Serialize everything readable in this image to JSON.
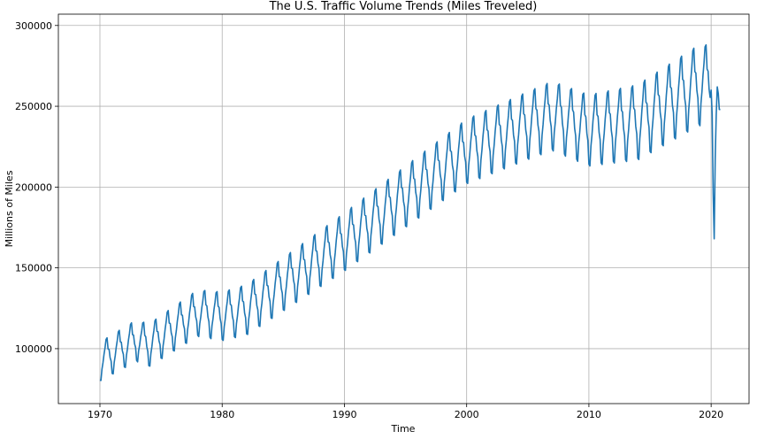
{
  "chart_data": {
    "type": "line",
    "title": "The U.S. Traffic Volume Trends (Miles Treveled)",
    "xlabel": "Time",
    "ylabel": "Millions of Miles",
    "xlim": [
      1966.6,
      2023.1
    ],
    "ylim": [
      66000,
      307000
    ],
    "xticks": [
      1970,
      1980,
      1990,
      2000,
      2010,
      2020
    ],
    "yticks": [
      100000,
      150000,
      200000,
      250000,
      300000
    ],
    "grid": true,
    "line_color": "#1f77b4",
    "series": [
      {
        "name": "",
        "trend_anchors": [
          [
            1970,
            92000
          ],
          [
            1973,
            105000
          ],
          [
            1974,
            102000
          ],
          [
            1978,
            122000
          ],
          [
            1980,
            120000
          ],
          [
            1982,
            124000
          ],
          [
            1990,
            166000
          ],
          [
            2000,
            222000
          ],
          [
            2005,
            238000
          ],
          [
            2007,
            244000
          ],
          [
            2010,
            235000
          ],
          [
            2014,
            240000
          ],
          [
            2019,
            263000
          ]
        ],
        "seasonal_amplitude": [
          [
            1970,
            12000
          ],
          [
            1980,
            15000
          ],
          [
            1990,
            18000
          ],
          [
            2000,
            20000
          ],
          [
            2010,
            22000
          ],
          [
            2019,
            25000
          ]
        ],
        "seasonal_profile": [
          -0.95,
          -1.0,
          -0.45,
          -0.15,
          0.25,
          0.55,
          0.95,
          1.0,
          0.4,
          0.35,
          -0.1,
          -0.3
        ],
        "last_year_values": [
          260000,
          245000,
          196000,
          168000,
          218000,
          245000,
          262000,
          258000,
          248000,
          248000
        ]
      }
    ]
  }
}
